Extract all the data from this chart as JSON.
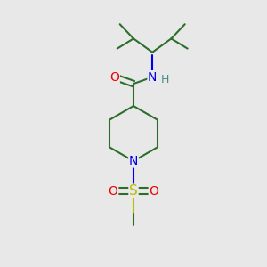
{
  "bg_color": "#e8e8e8",
  "bond_color": "#2d6e2d",
  "N_color": "#0000ee",
  "O_color": "#ee0000",
  "S_color": "#bbbb00",
  "H_color": "#4a8a8a",
  "bond_width": 1.5,
  "figsize": [
    3.0,
    3.0
  ],
  "dpi": 100,
  "xlim": [
    0,
    10
  ],
  "ylim": [
    0,
    10
  ]
}
